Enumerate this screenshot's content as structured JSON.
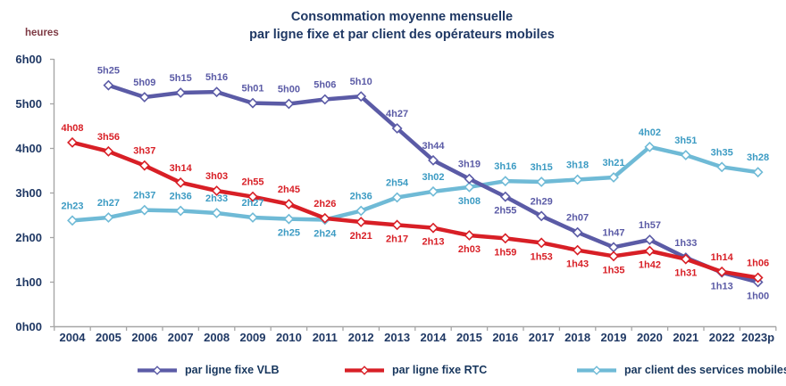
{
  "chart_data": {
    "type": "line",
    "title_lines": [
      "Consommation moyenne mensuelle",
      "par ligne fixe et par client des opérateurs mobiles"
    ],
    "ylabel": "heures",
    "y_ticks": [
      "0h00",
      "1h00",
      "2h00",
      "3h00",
      "4h00",
      "5h00",
      "6h00"
    ],
    "ylim_hours": [
      0,
      6
    ],
    "grid": false,
    "legend_position": "bottom",
    "axis_color": "#A6A6A6",
    "tick_label_color": "#1F3864",
    "categories": [
      "2004",
      "2005",
      "2006",
      "2007",
      "2008",
      "2009",
      "2010",
      "2011",
      "2012",
      "2013",
      "2014",
      "2015",
      "2016",
      "2017",
      "2018",
      "2019",
      "2020",
      "2021",
      "2022",
      "2023p"
    ],
    "series": [
      {
        "name": "par ligne fixe VLB",
        "color": "#5B5BA6",
        "label_color": "#5B5BA6",
        "values_hhmm": [
          null,
          "5h25",
          "5h09",
          "5h15",
          "5h16",
          "5h01",
          "5h00",
          "5h06",
          "5h10",
          "4h27",
          "3h44",
          "3h19",
          "2h55",
          "2h29",
          "2h07",
          "1h47",
          "1h57",
          "1h33",
          "1h13",
          "1h00"
        ],
        "label_side": [
          null,
          "above",
          "above",
          "above",
          "above",
          "above",
          "above",
          "above",
          "above",
          "above",
          "above",
          "above",
          "below",
          "above",
          "above",
          "above",
          "above",
          "above",
          "below",
          "below"
        ]
      },
      {
        "name": "par ligne fixe RTC",
        "color": "#D81F26",
        "label_color": "#D81F26",
        "values_hhmm": [
          "4h08",
          "3h56",
          "3h37",
          "3h14",
          "3h03",
          "2h55",
          "2h45",
          "2h26",
          "2h21",
          "2h17",
          "2h13",
          "2h03",
          "1h59",
          "1h53",
          "1h43",
          "1h35",
          "1h42",
          "1h31",
          "1h14",
          "1h06"
        ],
        "label_side": [
          "above",
          "above",
          "above",
          "above",
          "above",
          "above",
          "above",
          "above",
          "below",
          "below",
          "below",
          "below",
          "below",
          "below",
          "below",
          "below",
          "below",
          "below",
          "above",
          "above"
        ]
      },
      {
        "name": "par client des services mobiles",
        "color": "#6FBAD6",
        "label_color": "#3C9BC3",
        "values_hhmm": [
          "2h23",
          "2h27",
          "2h37",
          "2h36",
          "2h33",
          "2h27",
          "2h25",
          "2h24",
          "2h36",
          "2h54",
          "3h02",
          "3h08",
          "3h16",
          "3h15",
          "3h18",
          "3h21",
          "4h02",
          "3h51",
          "3h35",
          "3h28"
        ],
        "label_side": [
          "above",
          "above",
          "above",
          "above",
          "above",
          "above",
          "below",
          "below",
          "above",
          "above",
          "above",
          "below",
          "above",
          "above",
          "above",
          "above",
          "above",
          "above",
          "above",
          "above"
        ]
      }
    ],
    "draw_order": [
      2,
      0,
      1
    ]
  }
}
